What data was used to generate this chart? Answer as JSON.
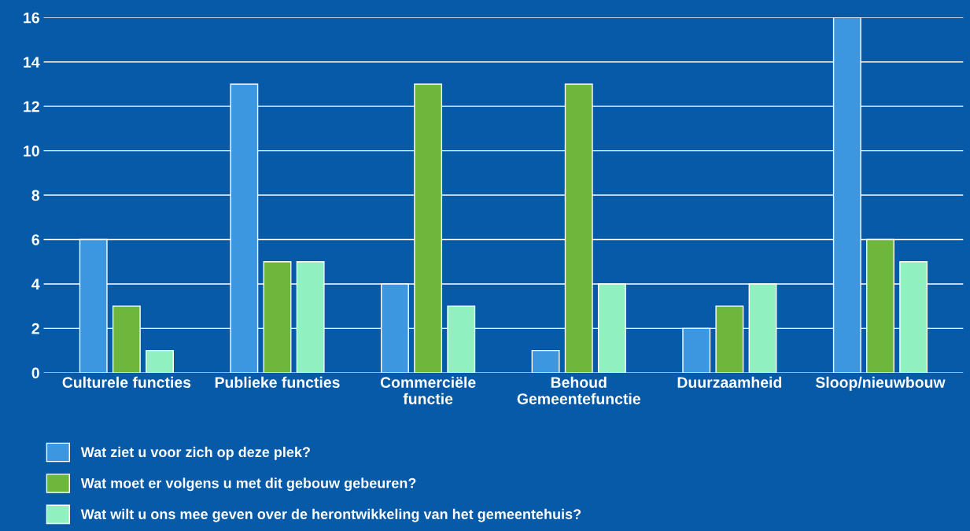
{
  "chart_data": {
    "type": "bar",
    "categories": [
      "Culturele functies",
      "Publieke functies",
      "Commerciële\nfunctie",
      "Behoud\nGemeentefunctie",
      "Duurzaamheid",
      "Sloop/nieuwbouw"
    ],
    "series": [
      {
        "name": "Wat ziet u voor zich op deze plek?",
        "color": "#3d97e0",
        "values": [
          6,
          13,
          4,
          1,
          2,
          16
        ]
      },
      {
        "name": "Wat moet er volgens u met dit gebouw gebeuren?",
        "color": "#6fb63d",
        "values": [
          3,
          5,
          13,
          13,
          3,
          6
        ]
      },
      {
        "name": "Wat wilt u ons mee geven over de herontwikkeling van het gemeentehuis?",
        "color": "#90f0c0",
        "values": [
          1,
          5,
          3,
          4,
          4,
          5
        ]
      }
    ],
    "ylim": [
      0,
      16
    ],
    "yticks": [
      0,
      2,
      4,
      6,
      8,
      10,
      12,
      14,
      16
    ],
    "grid": "y",
    "legend": "bottom"
  }
}
